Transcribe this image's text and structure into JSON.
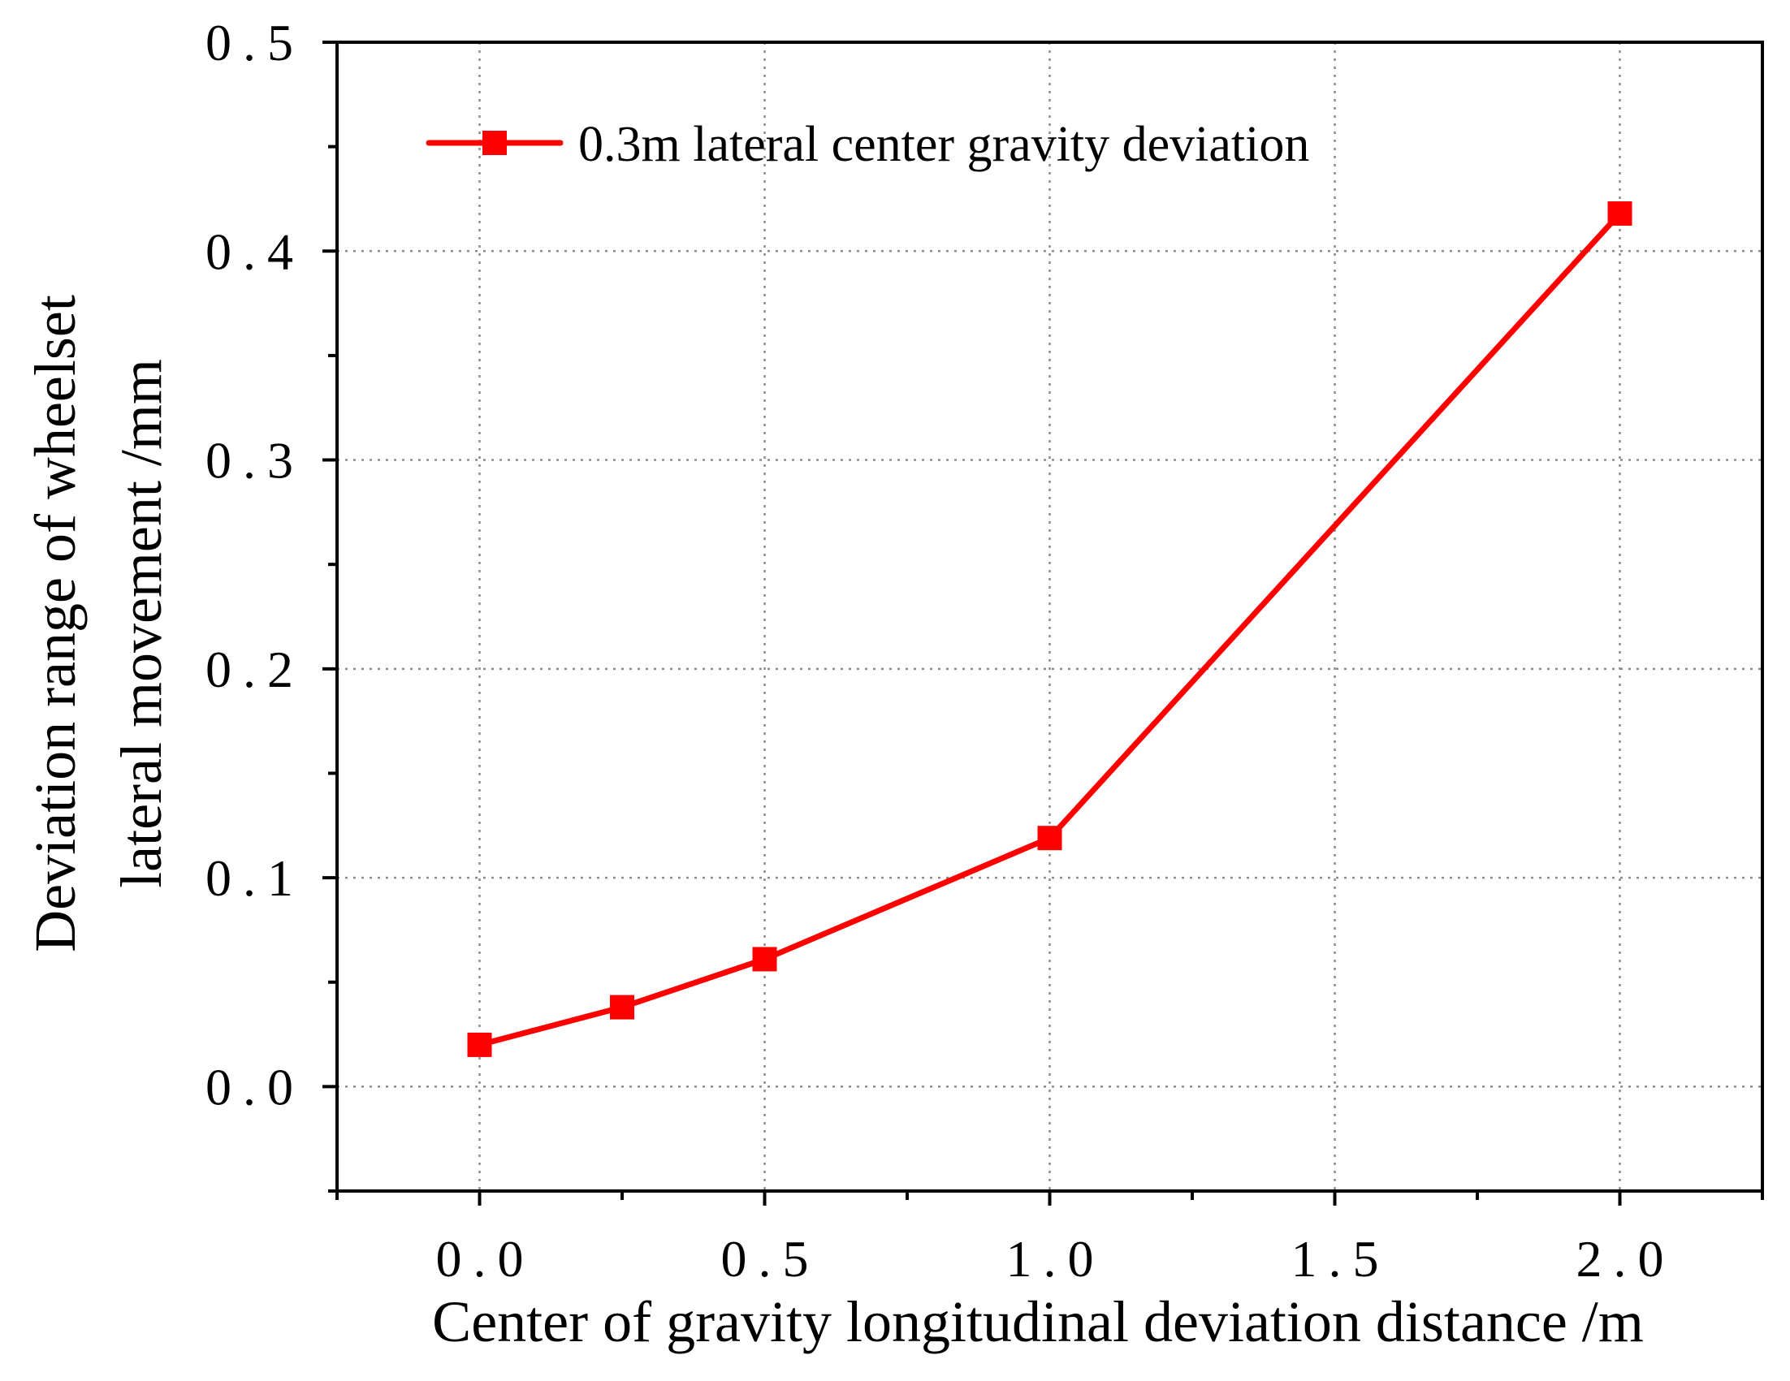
{
  "chart_data": {
    "type": "line",
    "title": "",
    "xlabel": "Center of gravity longitudinal  deviation distance /m",
    "ylabel_lines": [
      "Deviation range of wheelset",
      "lateral movement /mm"
    ],
    "xlim": [
      -0.25,
      2.25
    ],
    "ylim": [
      -0.05,
      0.5
    ],
    "xticks": [
      0.0,
      0.5,
      1.0,
      1.5,
      2.0
    ],
    "xtick_labels": [
      "0.0",
      "0.5",
      "1.0",
      "1.5",
      "2.0"
    ],
    "xminor": [
      -0.25,
      0.25,
      0.75,
      1.25,
      1.75,
      2.25
    ],
    "yticks": [
      0.0,
      0.1,
      0.2,
      0.3,
      0.4,
      0.5
    ],
    "ytick_labels": [
      "0.0",
      "0.1",
      "0.2",
      "0.3",
      "0.4",
      "0.5"
    ],
    "yminor": [
      -0.05,
      0.05,
      0.15,
      0.25,
      0.35,
      0.45
    ],
    "grid": true,
    "legend_position": "top-left",
    "series": [
      {
        "name": "0.3m lateral center gravity deviation",
        "color": "#ff0000",
        "marker": "square",
        "x": [
          0.0,
          0.25,
          0.5,
          1.0,
          2.0
        ],
        "y": [
          0.02,
          0.038,
          0.061,
          0.119,
          0.418
        ]
      }
    ]
  }
}
